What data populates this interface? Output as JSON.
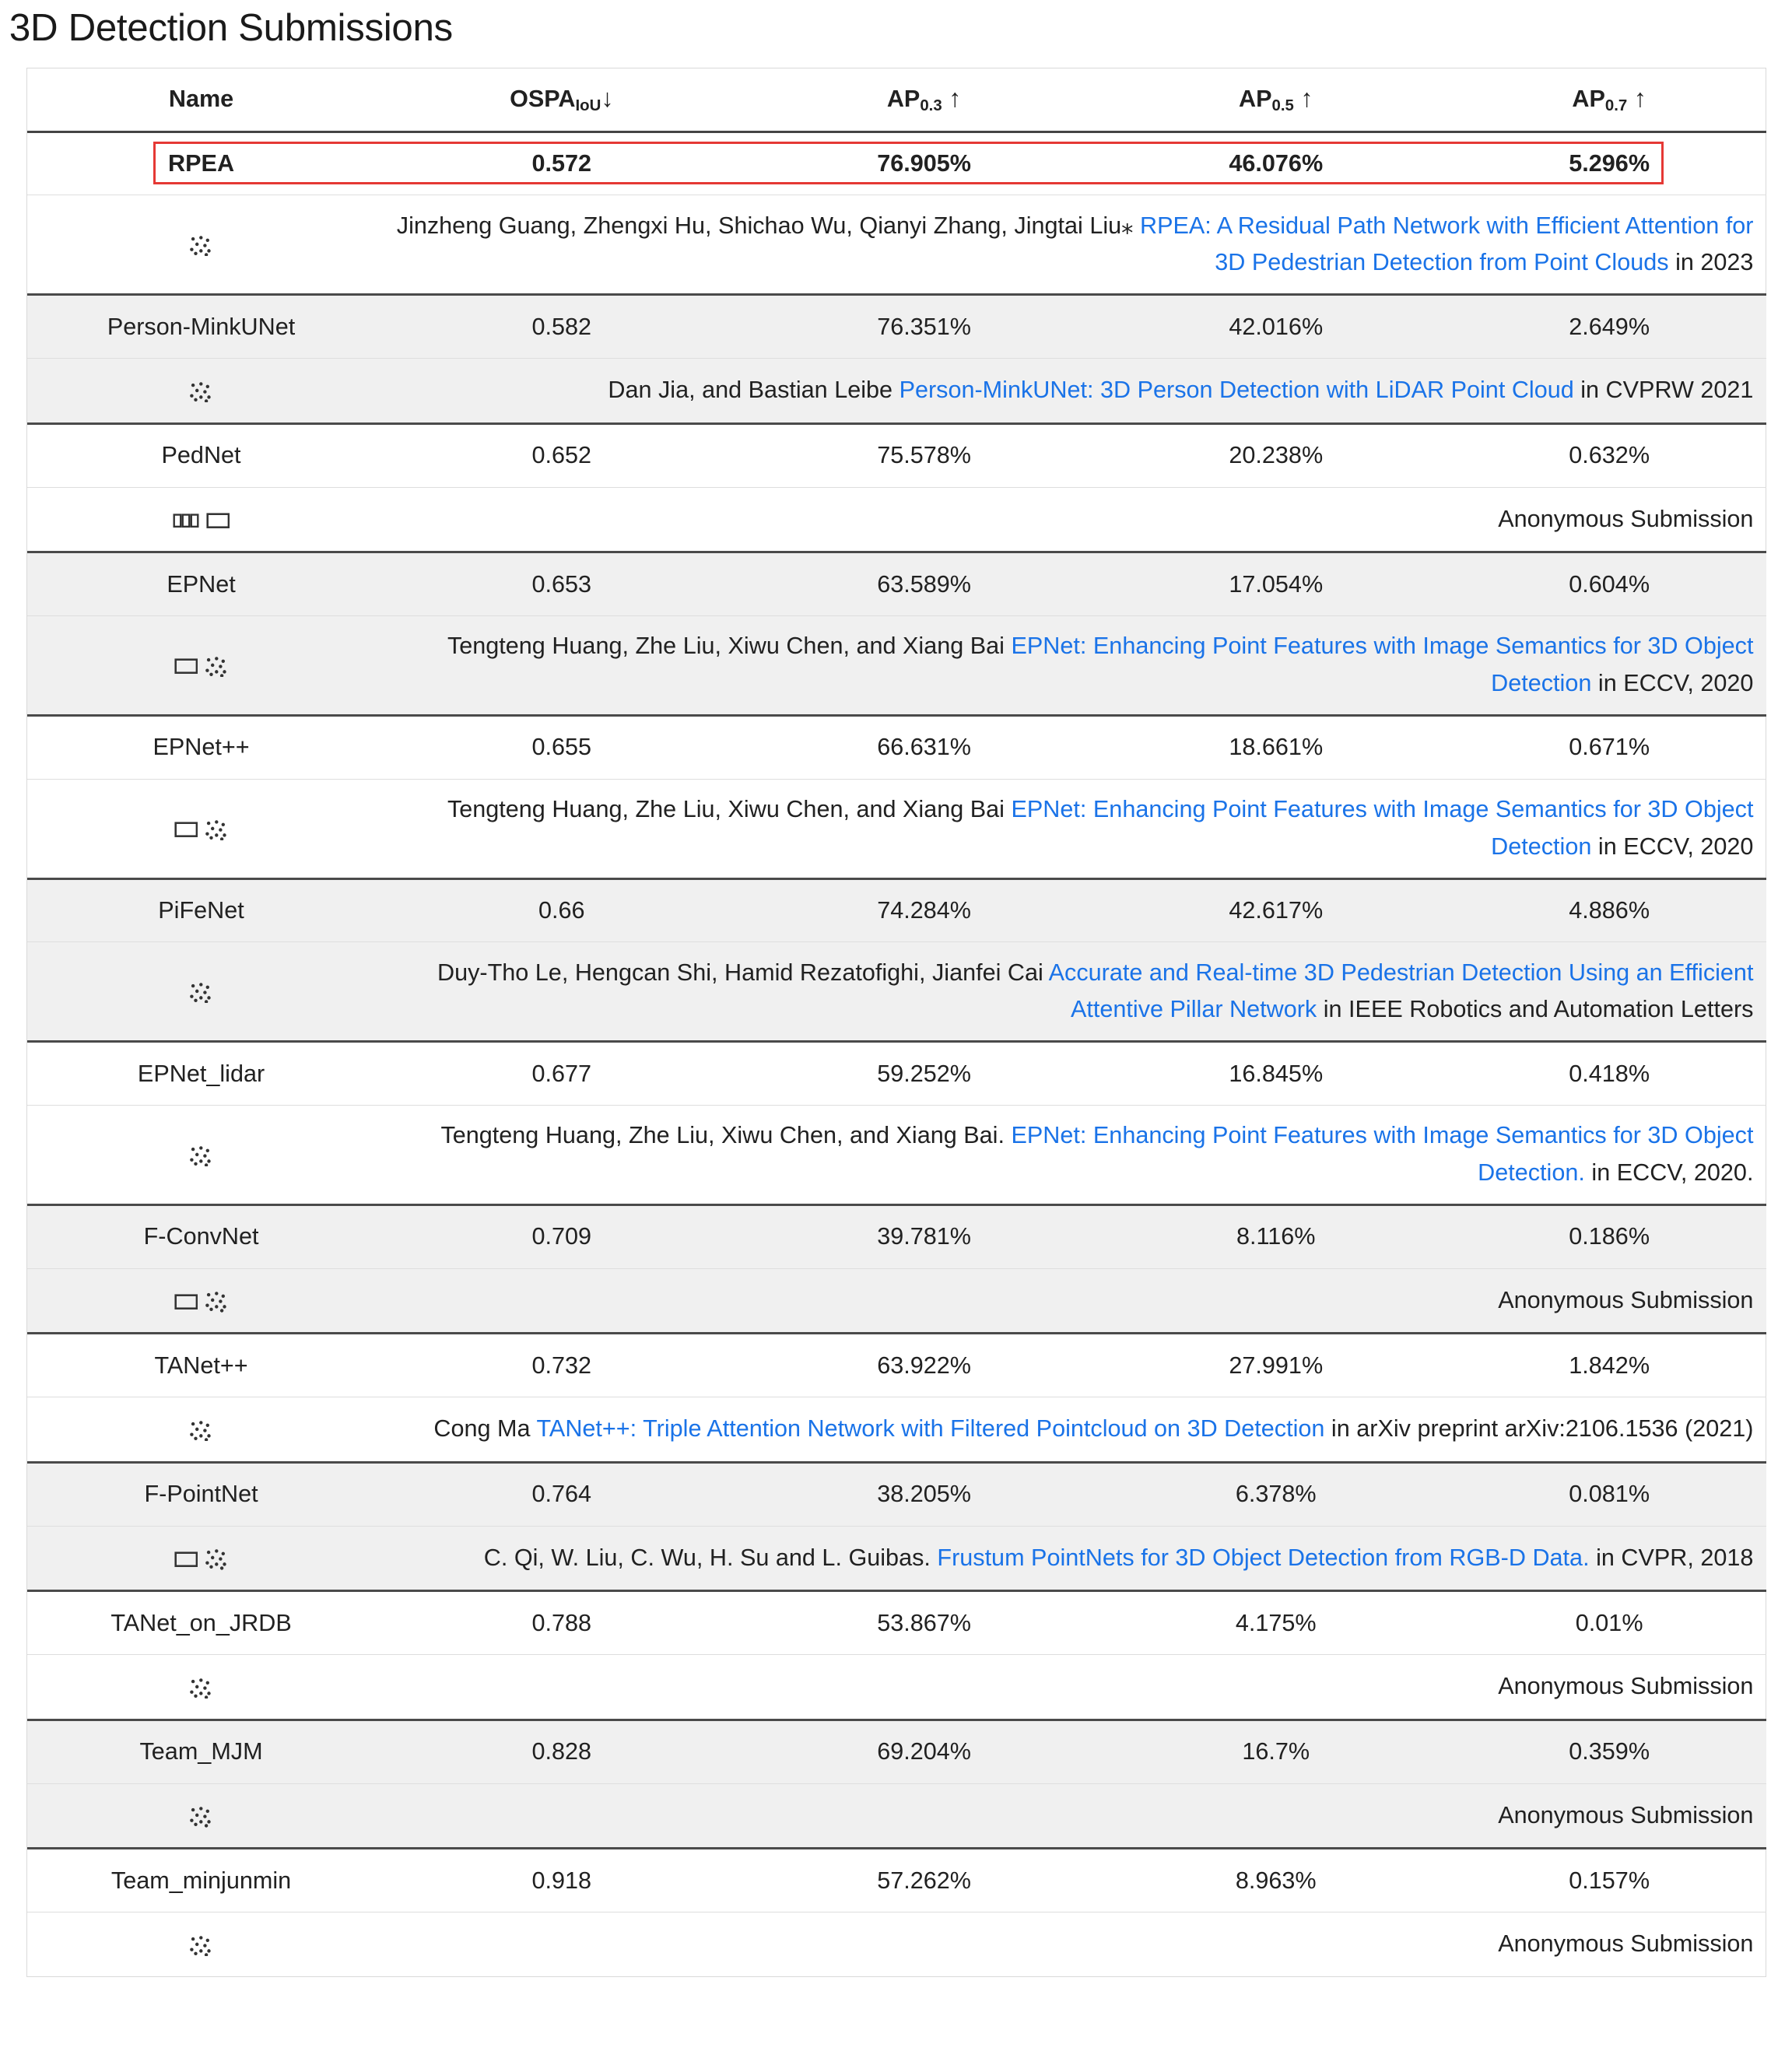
{
  "page_title": "3D Detection Submissions",
  "table": {
    "columns": [
      {
        "name": "Name",
        "sub": "",
        "arrow": ""
      },
      {
        "name": "OSPA",
        "sub": "IoU",
        "arrow": "↓"
      },
      {
        "name": "AP",
        "sub": "0.3",
        "arrow": "↑"
      },
      {
        "name": "AP",
        "sub": "0.5",
        "arrow": "↑"
      },
      {
        "name": "AP",
        "sub": "0.7",
        "arrow": "↑"
      }
    ],
    "rows": [
      {
        "name": "RPEA",
        "ospa": "0.572",
        "ap03": "76.905%",
        "ap05": "46.076%",
        "ap07": "5.296%",
        "highlight": true,
        "modalities": [
          "pointcloud-icon"
        ],
        "authors": "Jinzheng Guang, Zhengxi Hu, Shichao Wu, Qianyi Zhang, Jingtai Liu⁎ ",
        "paper": "RPEA: A Residual Path Network with Efficient Attention for 3D Pedestrian Detection from Point Clouds",
        "venue": " in 2023"
      },
      {
        "name": "Person-MinkUNet",
        "ospa": "0.582",
        "ap03": "76.351%",
        "ap05": "42.016%",
        "ap07": "2.649%",
        "modalities": [
          "pointcloud-icon"
        ],
        "authors": "Dan Jia, and Bastian Leibe ",
        "paper": "Person-MinkUNet: 3D Person Detection with LiDAR Point Cloud",
        "venue": " in CVPRW 2021"
      },
      {
        "name": "PedNet",
        "ospa": "0.652",
        "ap03": "75.578%",
        "ap05": "20.238%",
        "ap07": "0.632%",
        "modalities": [
          "stereo-icon",
          "image-icon"
        ],
        "authors": "",
        "paper": "",
        "venue": "Anonymous Submission"
      },
      {
        "name": "EPNet",
        "ospa": "0.653",
        "ap03": "63.589%",
        "ap05": "17.054%",
        "ap07": "0.604%",
        "modalities": [
          "image-icon",
          "pointcloud-icon"
        ],
        "authors": "Tengteng Huang, Zhe Liu, Xiwu Chen, and Xiang Bai ",
        "paper": "EPNet: Enhancing Point Features with Image Semantics for 3D Object Detection",
        "venue": " in ECCV, 2020"
      },
      {
        "name": "EPNet++",
        "ospa": "0.655",
        "ap03": "66.631%",
        "ap05": "18.661%",
        "ap07": "0.671%",
        "modalities": [
          "image-icon",
          "pointcloud-icon"
        ],
        "authors": "Tengteng Huang, Zhe Liu, Xiwu Chen, and Xiang Bai ",
        "paper": "EPNet: Enhancing Point Features with Image Semantics for 3D Object Detection",
        "venue": " in ECCV, 2020"
      },
      {
        "name": "PiFeNet",
        "ospa": "0.66",
        "ap03": "74.284%",
        "ap05": "42.617%",
        "ap07": "4.886%",
        "modalities": [
          "pointcloud-icon"
        ],
        "authors": "Duy-Tho Le, Hengcan Shi, Hamid Rezatofighi, Jianfei Cai ",
        "paper": "Accurate and Real-time 3D Pedestrian Detection Using an Efficient Attentive Pillar Network",
        "venue": " in IEEE Robotics and Automation Letters"
      },
      {
        "name": "EPNet_lidar",
        "ospa": "0.677",
        "ap03": "59.252%",
        "ap05": "16.845%",
        "ap07": "0.418%",
        "modalities": [
          "pointcloud-icon"
        ],
        "authors": "Tengteng Huang, Zhe Liu, Xiwu Chen, and Xiang Bai. ",
        "paper": "EPNet: Enhancing Point Features with Image Semantics for 3D Object Detection.",
        "venue": " in ECCV, 2020."
      },
      {
        "name": "F-ConvNet",
        "ospa": "0.709",
        "ap03": "39.781%",
        "ap05": "8.116%",
        "ap07": "0.186%",
        "modalities": [
          "image-icon",
          "pointcloud-icon"
        ],
        "authors": "",
        "paper": "",
        "venue": "Anonymous Submission"
      },
      {
        "name": "TANet++",
        "ospa": "0.732",
        "ap03": "63.922%",
        "ap05": "27.991%",
        "ap07": "1.842%",
        "modalities": [
          "pointcloud-icon"
        ],
        "authors": "Cong Ma ",
        "paper": "TANet++: Triple Attention Network with Filtered Pointcloud on 3D Detection",
        "venue": " in arXiv preprint arXiv:2106.1536 (2021)"
      },
      {
        "name": "F-PointNet",
        "ospa": "0.764",
        "ap03": "38.205%",
        "ap05": "6.378%",
        "ap07": "0.081%",
        "modalities": [
          "image-icon",
          "pointcloud-icon"
        ],
        "authors": "C. Qi, W. Liu, C. Wu, H. Su and L. Guibas. ",
        "paper": "Frustum PointNets for 3D Object Detection from RGB-D Data.",
        "venue": " in CVPR, 2018"
      },
      {
        "name": "TANet_on_JRDB",
        "ospa": "0.788",
        "ap03": "53.867%",
        "ap05": "4.175%",
        "ap07": "0.01%",
        "modalities": [
          "pointcloud-icon"
        ],
        "authors": "",
        "paper": "",
        "venue": "Anonymous Submission"
      },
      {
        "name": "Team_MJM",
        "ospa": "0.828",
        "ap03": "69.204%",
        "ap05": "16.7%",
        "ap07": "0.359%",
        "modalities": [
          "pointcloud-icon"
        ],
        "authors": "",
        "paper": "",
        "venue": "Anonymous Submission"
      },
      {
        "name": "Team_minjunmin",
        "ospa": "0.918",
        "ap03": "57.262%",
        "ap05": "8.963%",
        "ap07": "0.157%",
        "modalities": [
          "pointcloud-icon"
        ],
        "authors": "",
        "paper": "",
        "venue": "Anonymous Submission"
      }
    ]
  },
  "colors": {
    "link": "#1a73e8",
    "highlight_border": "#e53935",
    "stripe": "#f0f0f0"
  }
}
